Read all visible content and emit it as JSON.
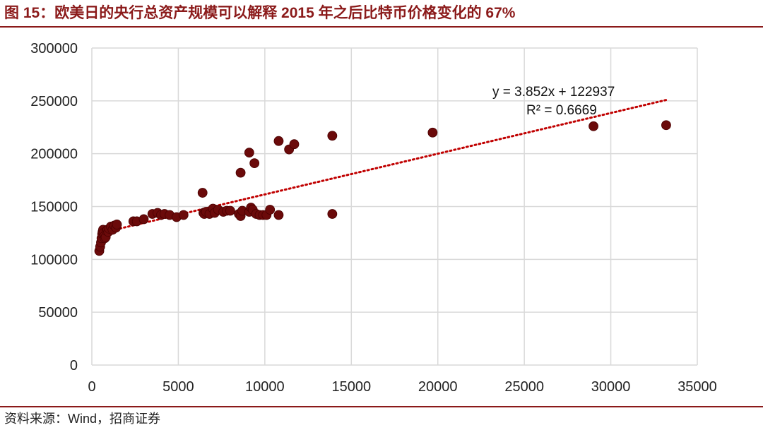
{
  "title": "图 15：欧美日的央行总资产规模可以解释 2015 年之后比特币价格变化的 67%",
  "source": "资料来源：Wind，招商证券",
  "colors": {
    "accent": "#8b1a1a",
    "point": "#6b0a0a",
    "trend": "#c00000"
  },
  "chart_data": {
    "type": "scatter",
    "title": "",
    "xlabel": "",
    "ylabel": "",
    "xlim": [
      0,
      35000
    ],
    "ylim": [
      0,
      300000
    ],
    "xticks": [
      0,
      5000,
      10000,
      15000,
      20000,
      25000,
      30000,
      35000
    ],
    "yticks": [
      0,
      50000,
      100000,
      150000,
      200000,
      250000,
      300000
    ],
    "xtick_labels": [
      "0",
      "5000",
      "10000",
      "15000",
      "20000",
      "25000",
      "30000",
      "35000"
    ],
    "ytick_labels": [
      "0",
      "50000",
      "100000",
      "150000",
      "200000",
      "250000",
      "300000"
    ],
    "grid": true,
    "series": [
      {
        "x": [
          430,
          480,
          530,
          560,
          600,
          620,
          650,
          680,
          720,
          750,
          800,
          850,
          900,
          950,
          1000,
          1100,
          1200,
          1300,
          1400,
          1450,
          2400,
          2600,
          3000,
          3500,
          3800,
          4000,
          4200,
          4500,
          4900,
          5300,
          6400,
          6450,
          6500,
          6600,
          6800,
          7000,
          7100,
          7300,
          7600,
          7800,
          8000,
          8500,
          8600,
          8700,
          8600,
          9100,
          9100,
          9200,
          9300,
          9400,
          9500,
          9700,
          9900,
          10100,
          10300,
          10800,
          10800,
          11400,
          11700,
          13900,
          13900,
          19700,
          29000,
          33200
        ],
        "y": [
          108000,
          112000,
          116000,
          120000,
          124000,
          126000,
          128000,
          125000,
          122000,
          120000,
          121000,
          127000,
          128000,
          126000,
          129000,
          131000,
          128000,
          132000,
          130000,
          133000,
          136000,
          136000,
          138000,
          143000,
          144000,
          142000,
          143000,
          142000,
          140000,
          142000,
          163000,
          144000,
          143000,
          145000,
          143000,
          148000,
          144000,
          147000,
          145000,
          146000,
          146000,
          143000,
          141000,
          146000,
          182000,
          201000,
          145000,
          149000,
          147000,
          191000,
          143000,
          142000,
          142000,
          142000,
          147000,
          142000,
          212000,
          204000,
          209000,
          217000,
          143000,
          220000,
          226000,
          227000
        ]
      }
    ],
    "trendline": {
      "type": "linear",
      "slope": 3.852,
      "intercept": 122937,
      "x_range": [
        430,
        33200
      ]
    },
    "annotations": [
      "y = 3.852x + 122937",
      "R² = 0.6669"
    ]
  }
}
